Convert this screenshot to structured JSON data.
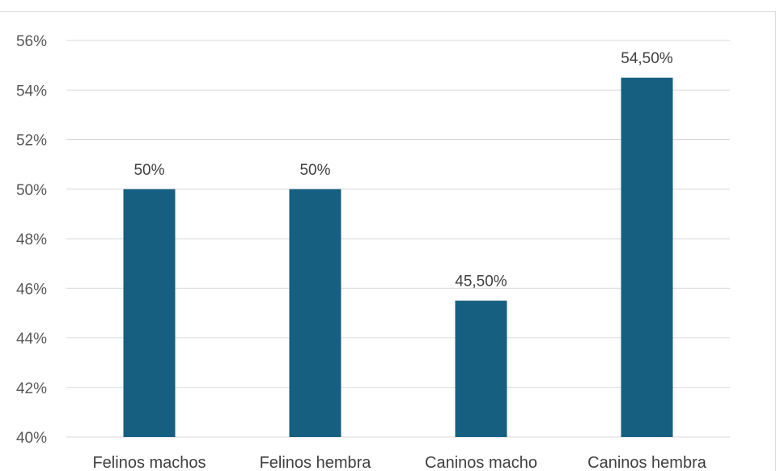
{
  "chart_data": {
    "type": "bar",
    "categories": [
      "Felinos machos",
      "Felinos hembra",
      "Caninos macho",
      "Caninos hembra"
    ],
    "values": [
      50,
      50,
      45.5,
      54.5
    ],
    "data_labels": [
      "50%",
      "50%",
      "45,50%",
      "54,50%"
    ],
    "ylim": [
      40,
      56
    ],
    "y_ticks": [
      40,
      42,
      44,
      46,
      48,
      50,
      52,
      54,
      56
    ],
    "y_tick_labels": [
      "40%",
      "42%",
      "44%",
      "46%",
      "48%",
      "50%",
      "52%",
      "54%",
      "56%"
    ],
    "grid": true,
    "legend": "none",
    "bar_color": "#165f80",
    "grid_color": "#d9d9d9"
  }
}
